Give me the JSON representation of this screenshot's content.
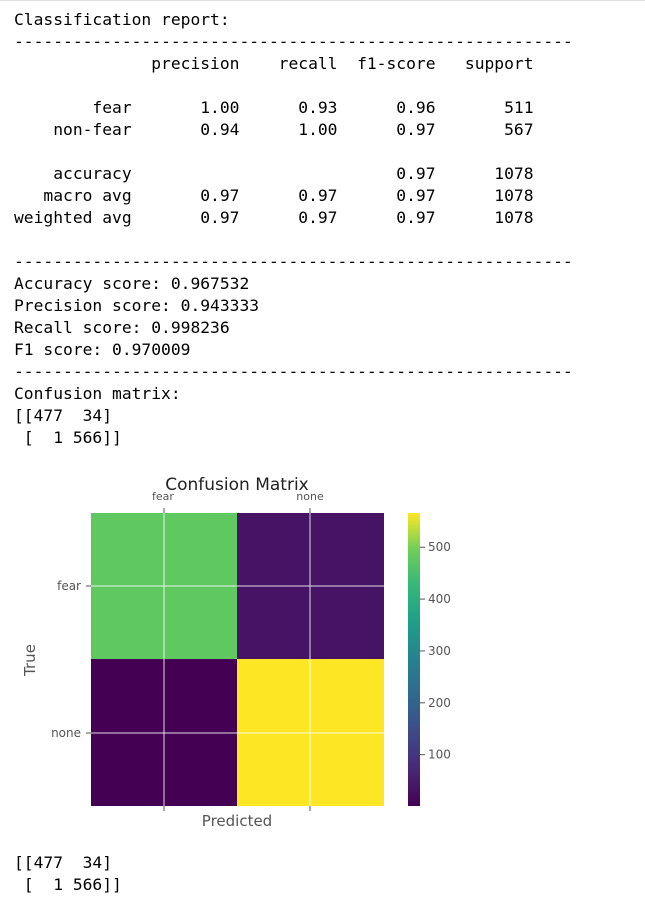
{
  "output": {
    "text_block": "Classification report:\n---------------------------------------------------------\n              precision    recall  f1-score   support\n\n        fear       1.00      0.93      0.96       511\n    non-fear       0.94      1.00      0.97       567\n\n    accuracy                           0.97      1078\n   macro avg       0.97      0.97      0.97      1078\nweighted avg       0.97      0.97      0.97      1078\n\n---------------------------------------------------------\nAccuracy score: 0.967532\nPrecision score: 0.943333\nRecall score: 0.998236\nF1 score: 0.970009\n---------------------------------------------------------\nConfusion matrix:\n[[477  34]\n [  1 566]]",
    "final_matrix_text": "[[477  34]\n [  1 566]]"
  },
  "chart_data": {
    "type": "heatmap",
    "title": "Confusion Matrix",
    "xlabel": "Predicted",
    "ylabel": "True",
    "x_tick_labels": [
      "fear",
      "none"
    ],
    "y_tick_labels": [
      "fear",
      "none"
    ],
    "matrix": [
      [
        477,
        34
      ],
      [
        1,
        566
      ]
    ],
    "colormap": "viridis",
    "colorbar_ticks": [
      "100",
      "200",
      "300",
      "400",
      "500"
    ],
    "colorbar_range": [
      1,
      566
    ],
    "grid": true
  }
}
